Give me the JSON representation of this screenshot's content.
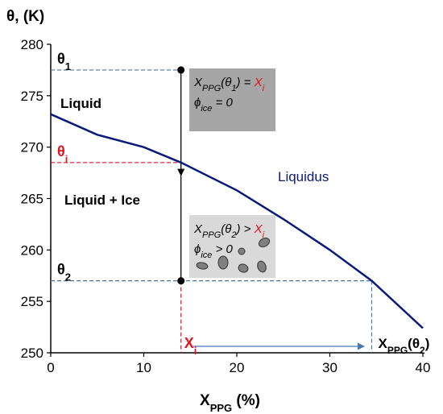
{
  "chart_data": {
    "type": "line",
    "y_title": "θ, (K)",
    "x_title": [
      {
        "t": "X"
      },
      {
        "t": "PPG",
        "sub": true
      },
      {
        "t": " (%)"
      }
    ],
    "xlim": [
      0,
      40
    ],
    "xticks": [
      0,
      10,
      20,
      30,
      40
    ],
    "ylim": [
      250,
      280
    ],
    "yticks": [
      250,
      255,
      260,
      265,
      270,
      275,
      280
    ],
    "x": [
      0,
      5,
      10,
      14,
      20,
      25,
      30,
      34.5,
      40
    ],
    "series": [
      {
        "name": "Liquidus",
        "color": "#0a1a7a",
        "values": [
          273.2,
          271.2,
          270.0,
          268.5,
          265.8,
          263.0,
          260.0,
          257.0,
          252.4
        ]
      }
    ],
    "regions": [
      "Liquid",
      "Liquid + Ice"
    ],
    "levels": [
      {
        "value": 277.5,
        "color": "#4a78b0",
        "label": [
          {
            "t": "θ"
          },
          {
            "t": "1",
            "sub": true
          }
        ]
      },
      {
        "value": 268.5,
        "color": "#e0141e",
        "label": [
          {
            "t": "θ"
          },
          {
            "t": "i",
            "sub": true
          }
        ]
      },
      {
        "value": 257,
        "color": "#4a78b0",
        "label": [
          {
            "t": "θ"
          },
          {
            "t": "2",
            "sub": true
          }
        ]
      }
    ],
    "x_i": {
      "value": 14,
      "color": "#e0141e",
      "label": [
        {
          "t": "X"
        },
        {
          "t": "i",
          "sub": true
        }
      ]
    },
    "x_final": {
      "value": 34.5,
      "color": "#4a78b0",
      "label": [
        {
          "t": "X"
        },
        {
          "t": "PPG",
          "sub": true
        },
        {
          "t": "(θ"
        },
        {
          "t": "2",
          "sub": true
        },
        {
          "t": ")"
        }
      ]
    },
    "boxes": [
      {
        "color": "#a6a6a6",
        "lines": [
          [
            {
              "t": "X"
            },
            {
              "t": "PPG",
              "sub": true
            },
            {
              "t": "(θ"
            },
            {
              "t": "1",
              "sub": true
            },
            {
              "t": ") = "
            },
            {
              "t": "X",
              "red": true
            },
            {
              "t": "i",
              "sub": true,
              "red": true
            }
          ],
          [
            {
              "t": "ϕ"
            },
            {
              "t": "ice",
              "sub": true
            },
            {
              "t": " = 0"
            }
          ]
        ]
      },
      {
        "color": "#d9d9d9",
        "lines": [
          [
            {
              "t": "X"
            },
            {
              "t": "PPG",
              "sub": true
            },
            {
              "t": "(θ"
            },
            {
              "t": "2",
              "sub": true
            },
            {
              "t": ") > "
            },
            {
              "t": "X",
              "red": true
            },
            {
              "t": "i",
              "sub": true,
              "red": true
            }
          ],
          [
            {
              "t": "ϕ"
            },
            {
              "t": "ice",
              "sub": true
            },
            {
              "t": " > 0"
            }
          ]
        ]
      }
    ]
  }
}
